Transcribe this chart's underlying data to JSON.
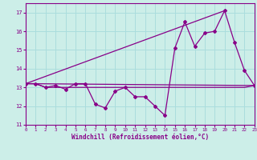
{
  "xlabel": "Windchill (Refroidissement éolien,°C)",
  "background_color": "#cceee8",
  "grid_color": "#aadddd",
  "line_color": "#880088",
  "x_hours": [
    0,
    1,
    2,
    3,
    4,
    5,
    6,
    7,
    8,
    9,
    10,
    11,
    12,
    13,
    14,
    15,
    16,
    17,
    18,
    19,
    20,
    21,
    22,
    23
  ],
  "windchill": [
    13.2,
    13.2,
    13.0,
    13.1,
    12.9,
    13.2,
    13.2,
    12.1,
    11.9,
    12.8,
    13.0,
    12.5,
    12.5,
    12.0,
    11.5,
    15.1,
    16.5,
    15.2,
    15.9,
    16.0,
    17.1,
    15.4,
    13.9,
    13.1
  ],
  "temperature": [
    13.2,
    13.2,
    13.0,
    13.0,
    13.0,
    13.0,
    13.0,
    13.0,
    13.0,
    13.0,
    13.0,
    13.0,
    13.0,
    13.0,
    13.0,
    13.0,
    13.0,
    13.0,
    13.0,
    13.0,
    13.0,
    13.0,
    13.0,
    13.1
  ],
  "diag_line1": [
    [
      0,
      20
    ],
    [
      13.2,
      17.1
    ]
  ],
  "diag_line2": [
    [
      0,
      23
    ],
    [
      13.2,
      13.1
    ]
  ],
  "ylim": [
    11,
    17.5
  ],
  "xlim": [
    0,
    23
  ],
  "yticks": [
    11,
    12,
    13,
    14,
    15,
    16,
    17
  ]
}
